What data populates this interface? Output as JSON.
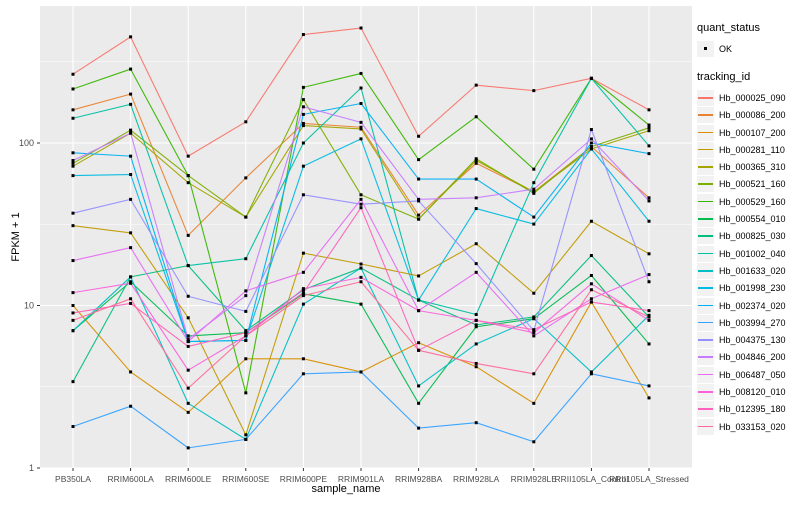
{
  "legend": {
    "quant_status": {
      "title": "quant_status",
      "items": [
        {
          "label": "OK",
          "marker": "black-square-point"
        }
      ]
    },
    "tracking_id": {
      "title": "tracking_id"
    }
  },
  "panel": {
    "background": "#EBEBEB",
    "grid_color": "#FFFFFF",
    "axis_text_color": "#4D4D4D",
    "point_color": "#000000"
  },
  "chart_data": {
    "type": "line",
    "title": "",
    "xlabel": "sample_name",
    "ylabel": "FPKM + 1",
    "y_scale": "log10",
    "y_ticks": [
      1,
      10,
      100
    ],
    "ylim": [
      0.92,
      700
    ],
    "grid": "white major+minor on gray panel",
    "legend_position": "right",
    "marker": "small black square",
    "categories": [
      "PB350LA",
      "RRIM600LA",
      "RRIM600LE",
      "RRIM600SE",
      "RRIM600PE",
      "RRIM901LA",
      "RRIM928BA",
      "RRIM928LA",
      "RRIM928LE",
      "RRII105LA_Control",
      "RRII105LA_Stressed"
    ],
    "series": [
      {
        "name": "Hb_000025_090",
        "color": "#F8766D",
        "values": [
          265,
          450,
          83,
          135,
          465,
          510,
          110,
          227,
          210,
          250,
          160
        ]
      },
      {
        "name": "Hb_000086_200",
        "color": "#EA8331",
        "values": [
          160,
          200,
          27,
          61,
          132,
          125,
          36,
          75,
          50,
          95,
          46
        ]
      },
      {
        "name": "Hb_000107_200",
        "color": "#D89000",
        "values": [
          10,
          3.9,
          2.2,
          4.7,
          4.7,
          3.9,
          5.9,
          4.2,
          2.5,
          10.5,
          2.7
        ]
      },
      {
        "name": "Hb_000281_110",
        "color": "#C09B00",
        "values": [
          31,
          28,
          8.4,
          1.6,
          21,
          18,
          15.2,
          24,
          11.9,
          33,
          20.8
        ]
      },
      {
        "name": "Hb_000365_310",
        "color": "#A3A500",
        "values": [
          72,
          115,
          57,
          35,
          128,
          122,
          34,
          78,
          50,
          92,
          119
        ]
      },
      {
        "name": "Hb_000521_160",
        "color": "#7CAE00",
        "values": [
          75,
          120,
          63,
          35,
          185,
          48,
          34,
          80,
          49,
          95,
          124
        ]
      },
      {
        "name": "Hb_000529_160",
        "color": "#39B600",
        "values": [
          215,
          285,
          63,
          2.9,
          220,
          268,
          79,
          145,
          69,
          250,
          129
        ]
      },
      {
        "name": "Hb_000554_010",
        "color": "#00BB4E",
        "values": [
          7,
          14,
          6.5,
          6.8,
          11.8,
          10.2,
          2.5,
          7.4,
          8.3,
          15.3,
          5.8
        ]
      },
      {
        "name": "Hb_000825_030",
        "color": "#00BF7D",
        "values": [
          3.4,
          15,
          17.6,
          7,
          12.5,
          17,
          10.8,
          7.6,
          8.5,
          20.3,
          8.5
        ]
      },
      {
        "name": "Hb_001002_040",
        "color": "#00C1A3",
        "values": [
          142,
          173,
          17.6,
          19.4,
          100,
          218,
          10.8,
          8.8,
          57,
          250,
          96
        ]
      },
      {
        "name": "Hb_001633_020",
        "color": "#00BFC4",
        "values": [
          7,
          15,
          2.5,
          1.5,
          10.2,
          17,
          3.2,
          5.8,
          8.3,
          3.9,
          8.7
        ]
      },
      {
        "name": "Hb_001998_230",
        "color": "#00BAE0",
        "values": [
          63,
          64,
          6.0,
          6.1,
          72,
          106,
          10.8,
          39.5,
          31.7,
          92,
          33
        ]
      },
      {
        "name": "Hb_002374_020",
        "color": "#00B0F6",
        "values": [
          87,
          83,
          6.0,
          6.1,
          150,
          175,
          60,
          60,
          35,
          100,
          86
        ]
      },
      {
        "name": "Hb_003994_270",
        "color": "#35A2FF",
        "values": [
          1.8,
          2.4,
          1.33,
          1.5,
          3.8,
          3.9,
          1.76,
          1.9,
          1.45,
          3.8,
          3.2
        ]
      },
      {
        "name": "Hb_004375_130",
        "color": "#9590FF",
        "values": [
          37,
          45,
          11.4,
          9.2,
          48,
          42,
          44,
          18.1,
          7,
          121,
          14
        ]
      },
      {
        "name": "Hb_004846_200",
        "color": "#C77CFF",
        "values": [
          78,
          115,
          6.2,
          11.5,
          167,
          134,
          45,
          46,
          52,
          106,
          44
        ]
      },
      {
        "name": "Hb_006487_050",
        "color": "#E76BF3",
        "values": [
          18.9,
          22.7,
          6.0,
          12.3,
          16,
          45,
          9.3,
          16,
          6.5,
          11,
          15.5
        ]
      },
      {
        "name": "Hb_008120_010",
        "color": "#FA62DB",
        "values": [
          12,
          13.7,
          4.0,
          6.5,
          12.7,
          14.9,
          9.3,
          8.1,
          6.8,
          13.6,
          8.1
        ]
      },
      {
        "name": "Hb_012395_180",
        "color": "#FF62BC",
        "values": [
          9,
          10.3,
          5.6,
          6.8,
          12,
          40,
          5.3,
          8.1,
          7.1,
          10.5,
          9.3
        ]
      },
      {
        "name": "Hb_033153_020",
        "color": "#FF6A98",
        "values": [
          8.1,
          11,
          3.1,
          6.5,
          11.5,
          14,
          5.3,
          4.4,
          3.8,
          12.5,
          8.5
        ]
      }
    ]
  }
}
